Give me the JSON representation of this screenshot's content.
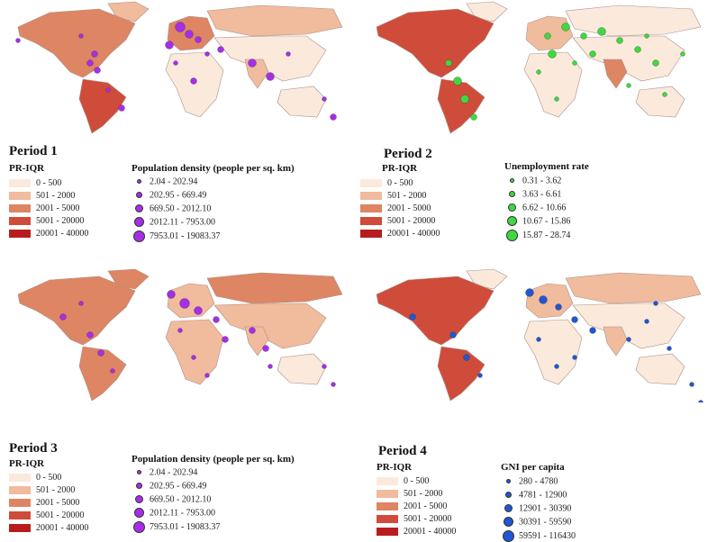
{
  "colors": {
    "pr_iqr": [
      "#fbe9dc",
      "#f1bb9d",
      "#de8563",
      "#d04c3a",
      "#b81d1d"
    ],
    "land_outline": "#a8928a",
    "population": "#a62ee6",
    "unemployment": "#3fd83f",
    "gni": "#1f57d1"
  },
  "panels": [
    {
      "title": "Period 1",
      "pr_label": "PR-IQR",
      "pr_ranges": [
        "0 - 500",
        "501 - 2000",
        "2001 - 5000",
        "5001 - 20000",
        "20001 - 40000"
      ],
      "indicator_title": "Population density (people per sq. km)",
      "indicator_ranges": [
        "2.04 - 202.94",
        "202.95 - 669.49",
        "669.50 - 2012.10",
        "2012.11 - 7953.00",
        "7953.01 - 19083.37"
      ],
      "dot_color": "population",
      "fill_levels": {
        "na": 2,
        "sa": 3,
        "greenland": 1,
        "europe": 2,
        "russia": 1,
        "asia": 0,
        "india": 1,
        "africa": 0,
        "australia": 0
      }
    },
    {
      "title": "Period 2",
      "pr_label": "PR-IQR",
      "pr_ranges": [
        "0 - 500",
        "501 - 2000",
        "2001 - 5000",
        "5001 - 20000",
        "20001 - 40000"
      ],
      "indicator_title": "Unemployment rate",
      "indicator_ranges": [
        "0.31 - 3.62",
        "3.63 - 6.61",
        "6.62 - 10.66",
        "10.67 - 15.86",
        "15.87 - 28.74"
      ],
      "dot_color": "unemployment",
      "fill_levels": {
        "na": 3,
        "sa": 3,
        "greenland": 0,
        "europe": 1,
        "russia": 0,
        "asia": 0,
        "india": 2,
        "africa": 0,
        "australia": 0
      }
    },
    {
      "title": "Period 3",
      "pr_label": "PR-IQR",
      "pr_ranges": [
        "0 - 500",
        "501 - 2000",
        "2001 - 5000",
        "5001 - 20000",
        "20001 - 40000"
      ],
      "indicator_title": "Population density (people per sq. km)",
      "indicator_ranges": [
        "2.04 - 202.94",
        "202.95 - 669.49",
        "669.50 - 2012.10",
        "2012.11 - 7953.00",
        "7953.01 - 19083.37"
      ],
      "dot_color": "population",
      "fill_levels": {
        "na": 2,
        "sa": 2,
        "greenland": 2,
        "europe": 1,
        "russia": 2,
        "asia": 1,
        "india": 1,
        "africa": 1,
        "australia": 0
      }
    },
    {
      "title": "Period 4",
      "pr_label": "PR-IQR",
      "pr_ranges": [
        "0 - 500",
        "501 - 2000",
        "2001 - 5000",
        "5001 - 20000",
        "20001 - 40000"
      ],
      "indicator_title": "GNI per capita",
      "indicator_ranges": [
        "280 - 4780",
        "4781 - 12900",
        "12901 - 30390",
        "30391 - 59590",
        "59591 - 116430"
      ],
      "dot_color": "gni",
      "fill_levels": {
        "na": 3,
        "sa": 3,
        "greenland": 0,
        "europe": 1,
        "russia": 1,
        "asia": 0,
        "india": 1,
        "africa": 0,
        "australia": 0
      }
    }
  ]
}
